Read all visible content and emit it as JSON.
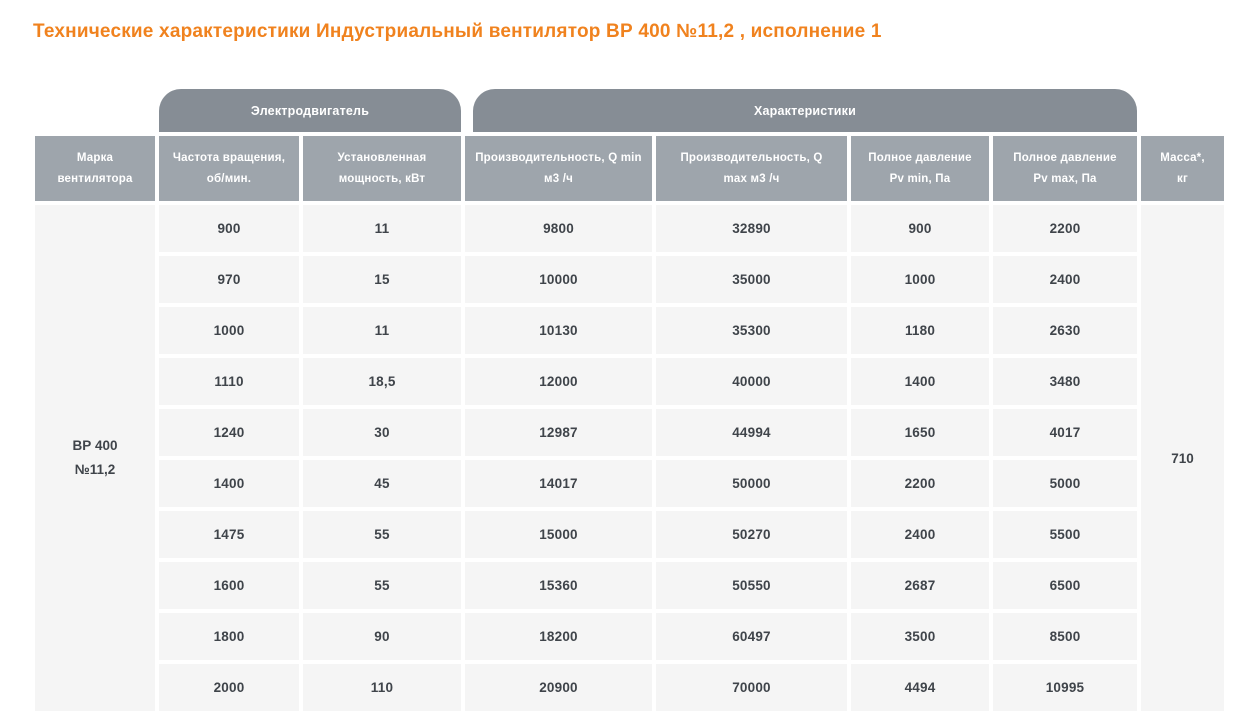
{
  "page": {
    "title": "Технические характеристики Индустриальный вентилятор ВР 400 №11,2 , исполнение 1"
  },
  "table": {
    "group_headers": {
      "motor": "Электродвигатель",
      "characteristics": "Характеристики"
    },
    "columns": [
      {
        "line1": "Марка",
        "line2": "вентилятора"
      },
      {
        "line1": "Частота вращения,",
        "line2": "об/мин."
      },
      {
        "line1": "Установленная",
        "line2": "мощность, кВт"
      },
      {
        "line1": "Производительность, Q min",
        "line2": "м3 /ч"
      },
      {
        "line1": "Производительность, Q",
        "line2": "max м3 /ч"
      },
      {
        "line1": "Полное давление",
        "line2": "Pv min, Па"
      },
      {
        "line1": "Полное давление",
        "line2": "Pv max, Па"
      },
      {
        "line1": "Масса*,",
        "line2": "кг"
      }
    ],
    "fan_model": {
      "line1": "ВР 400",
      "line2": "№11,2"
    },
    "mass": "710",
    "rows": [
      {
        "rpm": "900",
        "power": "11",
        "q_min": "9800",
        "q_max": "32890",
        "pv_min": "900",
        "pv_max": "2200"
      },
      {
        "rpm": "970",
        "power": "15",
        "q_min": "10000",
        "q_max": "35000",
        "pv_min": "1000",
        "pv_max": "2400"
      },
      {
        "rpm": "1000",
        "power": "11",
        "q_min": "10130",
        "q_max": "35300",
        "pv_min": "1180",
        "pv_max": "2630"
      },
      {
        "rpm": "1110",
        "power": "18,5",
        "q_min": "12000",
        "q_max": "40000",
        "pv_min": "1400",
        "pv_max": "3480"
      },
      {
        "rpm": "1240",
        "power": "30",
        "q_min": "12987",
        "q_max": "44994",
        "pv_min": "1650",
        "pv_max": "4017"
      },
      {
        "rpm": "1400",
        "power": "45",
        "q_min": "14017",
        "q_max": "50000",
        "pv_min": "2200",
        "pv_max": "5000"
      },
      {
        "rpm": "1475",
        "power": "55",
        "q_min": "15000",
        "q_max": "50270",
        "pv_min": "2400",
        "pv_max": "5500"
      },
      {
        "rpm": "1600",
        "power": "55",
        "q_min": "15360",
        "q_max": "50550",
        "pv_min": "2687",
        "pv_max": "6500"
      },
      {
        "rpm": "1800",
        "power": "90",
        "q_min": "18200",
        "q_max": "60497",
        "pv_min": "3500",
        "pv_max": "8500"
      },
      {
        "rpm": "2000",
        "power": "110",
        "q_min": "20900",
        "q_max": "70000",
        "pv_min": "4494",
        "pv_max": "10995"
      }
    ]
  },
  "colors": {
    "title_orange": "#f0821e",
    "group_bar_gray": "#868d95",
    "column_head_gray": "#9ea5ac",
    "cell_bg": "#f5f5f5",
    "cell_text": "#3f444a"
  }
}
